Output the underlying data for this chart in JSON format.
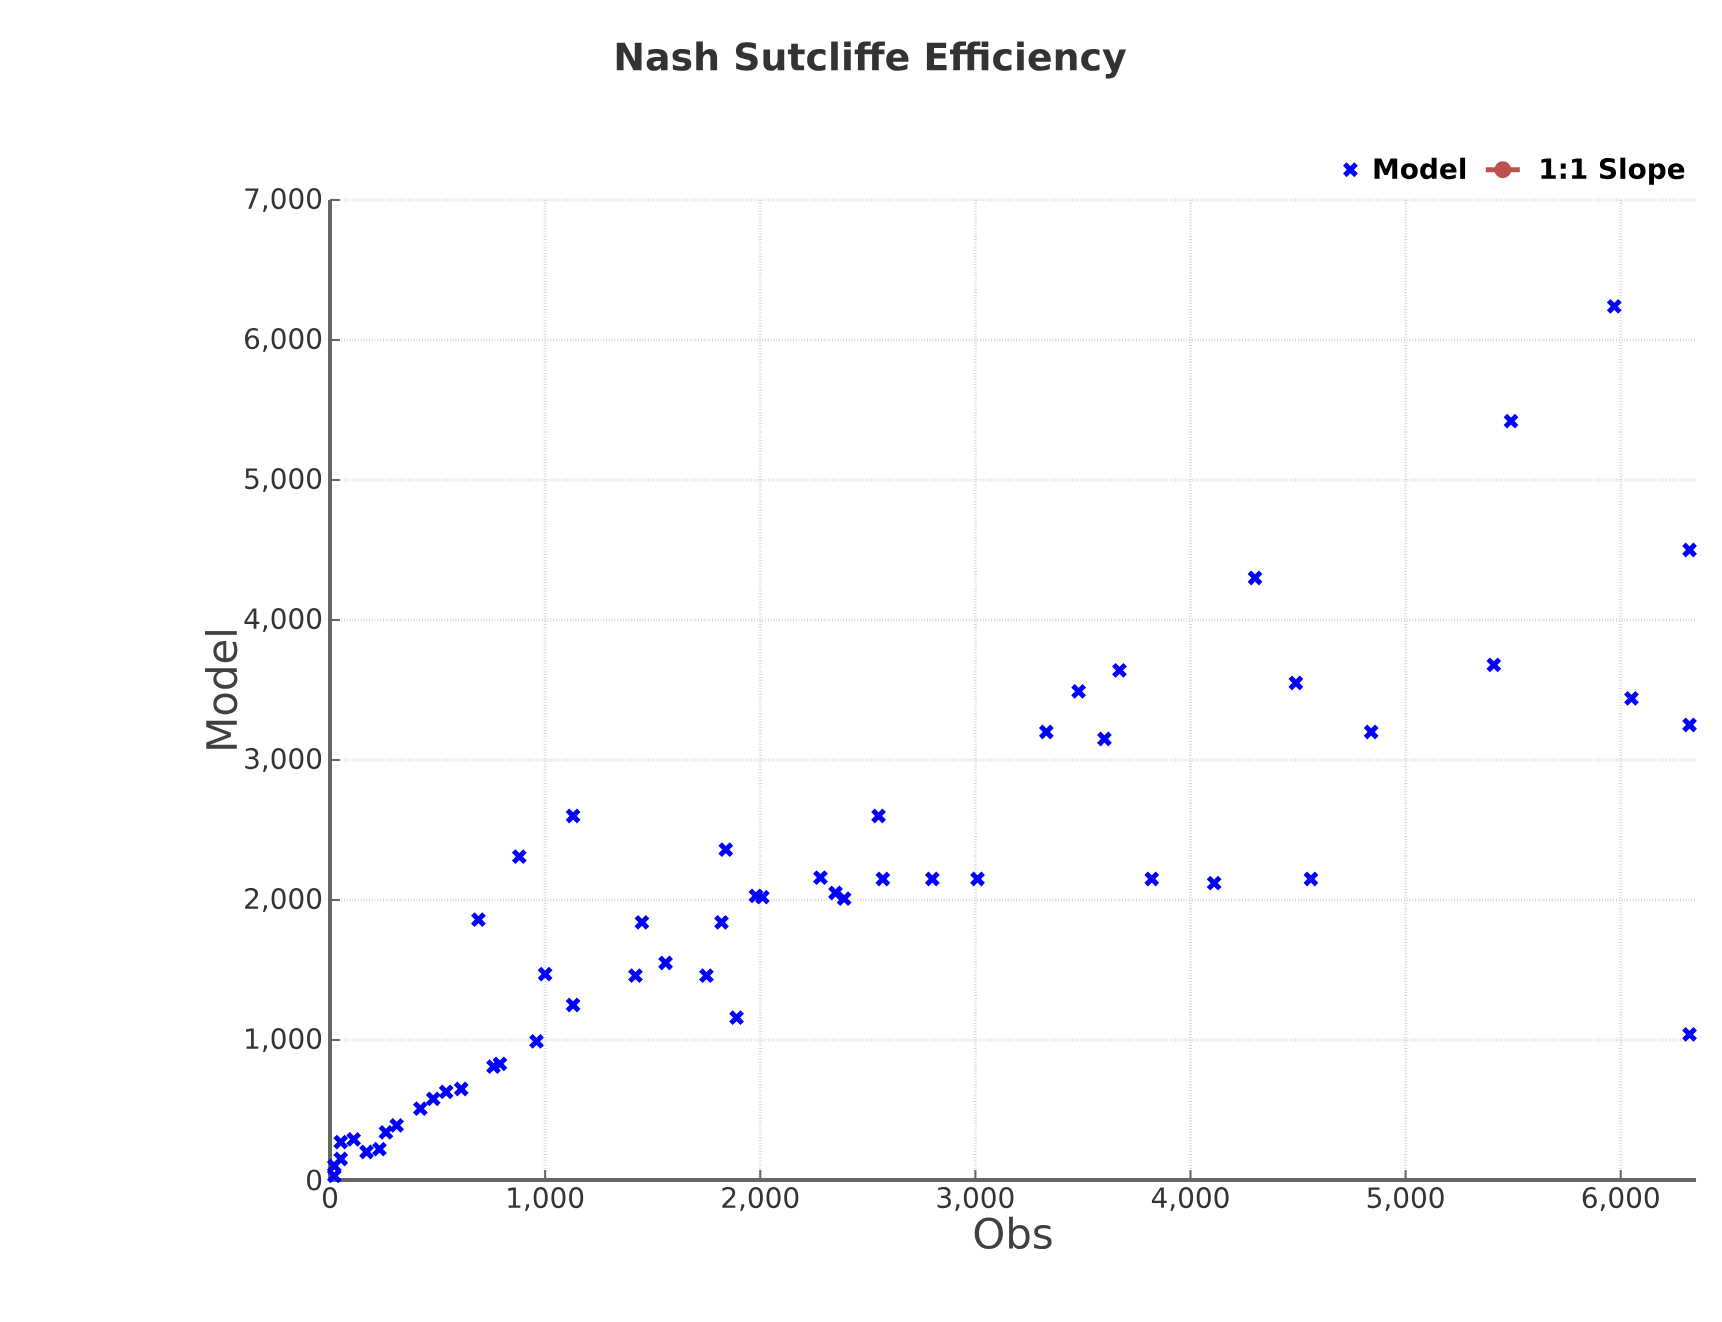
{
  "chart_data": {
    "type": "scatter",
    "title": "Nash Sutcliffe Efficiency",
    "xlabel": "Obs",
    "ylabel": "Model",
    "xlim": [
      0,
      6350
    ],
    "ylim": [
      0,
      7000
    ],
    "xticks": [
      0,
      {
        "value": 1000,
        "label": "1,000"
      },
      {
        "value": 2000,
        "label": "2,000"
      },
      {
        "value": 3000,
        "label": "3,000"
      },
      {
        "value": 4000,
        "label": "4,000"
      },
      {
        "value": 5000,
        "label": "5,000"
      },
      {
        "value": 6000,
        "label": "6,000"
      }
    ],
    "yticks": [
      0,
      {
        "value": 1000,
        "label": "1,000"
      },
      {
        "value": 2000,
        "label": "2,000"
      },
      {
        "value": 3000,
        "label": "3,000"
      },
      {
        "value": 4000,
        "label": "4,000"
      },
      {
        "value": 5000,
        "label": "5,000"
      },
      {
        "value": 6000,
        "label": "6,000"
      },
      {
        "value": 7000,
        "label": "7,000"
      }
    ],
    "grid": true,
    "legend": "top right",
    "series": [
      {
        "name": "Model",
        "color": "#0000ff",
        "marker": "cross",
        "x": [
          20,
          20,
          50,
          50,
          110,
          170,
          230,
          260,
          310,
          420,
          480,
          540,
          610,
          690,
          760,
          790,
          880,
          960,
          1000,
          1130,
          1130,
          1420,
          1450,
          1560,
          1750,
          1820,
          1840,
          1890,
          1980,
          2010,
          2280,
          2350,
          2390,
          2550,
          2570,
          2800,
          3010,
          3330,
          3480,
          3600,
          3670,
          3820,
          4110,
          4300,
          4490,
          4560,
          4840,
          5410,
          5490,
          5970,
          6050,
          6320,
          6320,
          6320
        ],
        "values": [
          30,
          100,
          150,
          270,
          290,
          200,
          220,
          340,
          390,
          510,
          580,
          630,
          650,
          1860,
          810,
          830,
          2310,
          990,
          1470,
          2600,
          1250,
          1460,
          1840,
          1550,
          1460,
          1840,
          2360,
          1160,
          2030,
          2020,
          2160,
          2050,
          2010,
          2600,
          2150,
          2150,
          2150,
          3200,
          3490,
          3150,
          3640,
          2150,
          2120,
          4300,
          3550,
          2150,
          3200,
          3680,
          5420,
          6240,
          3440,
          4500,
          3250,
          1040
        ]
      },
      {
        "name": "1:1 Slope",
        "type": "line",
        "color": "#c0504d",
        "marker": "circle"
      }
    ]
  }
}
